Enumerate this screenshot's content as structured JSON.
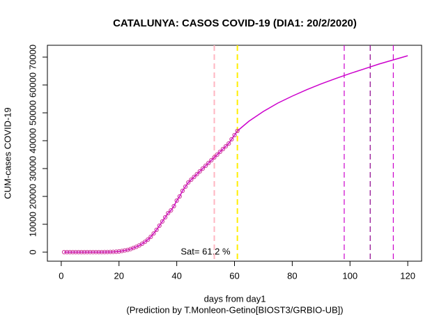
{
  "chart_data": {
    "type": "line",
    "title": "CATALUNYA: CASOS COVID-19 (DIA1: 20/2/2020)",
    "x_label": "days from day1",
    "caption": "(Prediction by T.Monleon-Getino[BIOST3/GRBIO-UB])",
    "y_label": "CUM-cases COVID-19",
    "annotation": "Sat= 61.2 %",
    "xlim": [
      -4.8,
      124.8
    ],
    "ylim": [
      -3250,
      74250
    ],
    "xticks": [
      0,
      20,
      40,
      60,
      80,
      100,
      120
    ],
    "yticks": [
      0,
      10000,
      20000,
      30000,
      40000,
      50000,
      60000,
      70000
    ],
    "series": [
      {
        "name": "observed",
        "color": "#cc3399",
        "marker": "circle",
        "x": [
          1,
          2,
          3,
          4,
          5,
          6,
          7,
          8,
          9,
          10,
          11,
          12,
          13,
          14,
          15,
          16,
          17,
          18,
          19,
          20,
          21,
          22,
          23,
          24,
          25,
          26,
          27,
          28,
          29,
          30,
          31,
          32,
          33,
          34,
          35,
          36,
          37,
          38,
          39,
          40,
          41,
          42,
          43,
          44,
          45,
          46,
          47,
          48,
          49,
          50,
          51,
          52,
          53,
          54,
          55,
          56,
          57,
          58,
          59,
          60,
          61
        ],
        "values": [
          0,
          0,
          0,
          0,
          0,
          0,
          1,
          1,
          2,
          3,
          5,
          10,
          15,
          20,
          30,
          50,
          75,
          100,
          150,
          250,
          400,
          600,
          800,
          1100,
          1500,
          1900,
          2400,
          3000,
          3700,
          4500,
          5500,
          6700,
          8000,
          9500,
          11000,
          12500,
          14000,
          15000,
          16500,
          18500,
          20000,
          22000,
          23500,
          25000,
          26000,
          27000,
          28000,
          29000,
          30000,
          31000,
          32000,
          33000,
          34000,
          35000,
          36000,
          37000,
          38000,
          39000,
          40500,
          42000,
          43500
        ]
      },
      {
        "name": "predicted",
        "color": "#cc00cc",
        "marker": "none",
        "x": [
          61,
          65,
          70,
          75,
          80,
          85,
          90,
          95,
          100,
          105,
          110,
          115,
          120
        ],
        "values": [
          43500,
          47000,
          50500,
          53500,
          56000,
          58300,
          60400,
          62300,
          64100,
          65800,
          67500,
          69000,
          70500
        ]
      }
    ],
    "vlines": [
      {
        "x": 53,
        "color": "#ffb6c1"
      },
      {
        "x": 61,
        "color": "#ffee00"
      },
      {
        "x": 98,
        "color": "#cc00cc"
      },
      {
        "x": 107,
        "color": "#8b008b"
      },
      {
        "x": 115,
        "color": "#cc00cc"
      }
    ]
  }
}
